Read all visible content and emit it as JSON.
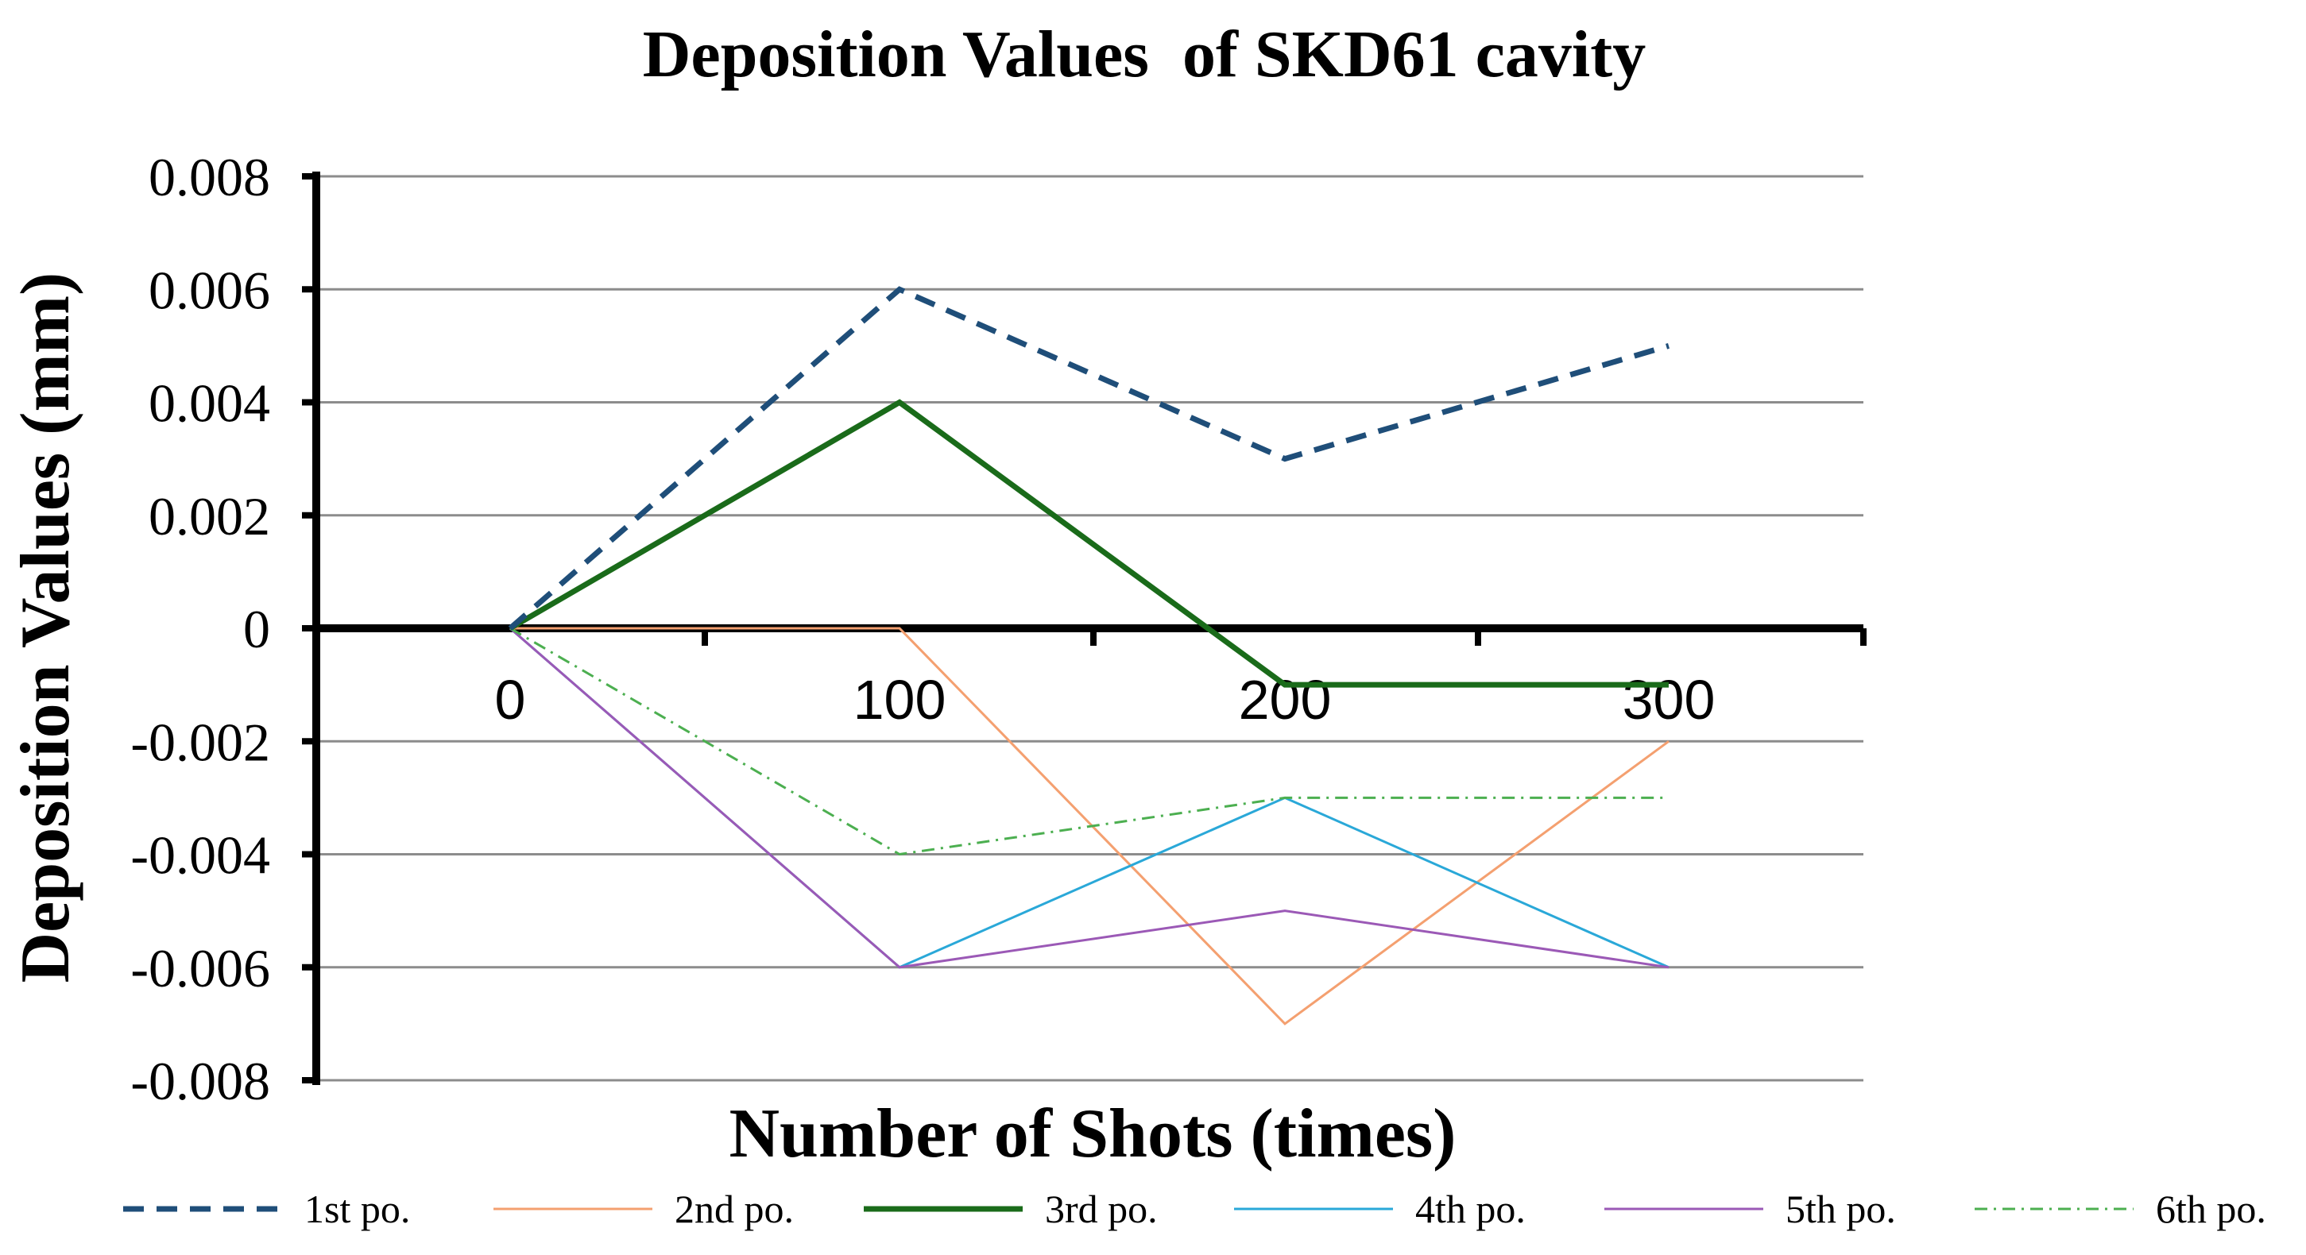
{
  "chart_data": {
    "type": "line",
    "title": "Deposition Values  of SKD61 cavity",
    "xlabel": "Number of Shots (times)",
    "ylabel": "Deposition Values (mm)",
    "categories": [
      "0",
      "100",
      "200",
      "300"
    ],
    "ylim": [
      -0.008,
      0.008
    ],
    "yticks": [
      0.008,
      0.006,
      0.004,
      0.002,
      0,
      -0.002,
      -0.004,
      -0.006,
      -0.008
    ],
    "ytick_labels": [
      "0.008",
      "0.006",
      "0.004",
      "0.002",
      "0",
      "-0.002",
      "-0.004",
      "-0.006",
      "-0.008"
    ],
    "grid": true,
    "legend_position": "bottom",
    "series": [
      {
        "name": "1st po.",
        "values": [
          0,
          0.006,
          0.003,
          0.005
        ],
        "color": "#1f4e79",
        "style": "dashed"
      },
      {
        "name": "2nd po.",
        "values": [
          0,
          0,
          -0.007,
          -0.002
        ],
        "color": "#f4a070",
        "style": "solid"
      },
      {
        "name": "3rd po.",
        "values": [
          0,
          0.004,
          -0.001,
          -0.001
        ],
        "color": "#1a6b1a",
        "style": "solid-bold"
      },
      {
        "name": "4th po.",
        "values": [
          0,
          -0.006,
          -0.003,
          -0.006
        ],
        "color": "#2aa8d8",
        "style": "solid"
      },
      {
        "name": "5th po.",
        "values": [
          0,
          -0.006,
          -0.005,
          -0.006
        ],
        "color": "#9b59b6",
        "style": "solid"
      },
      {
        "name": "6th po.",
        "values": [
          0,
          -0.004,
          -0.003,
          -0.003
        ],
        "color": "#4caf50",
        "style": "dashdot"
      }
    ]
  }
}
